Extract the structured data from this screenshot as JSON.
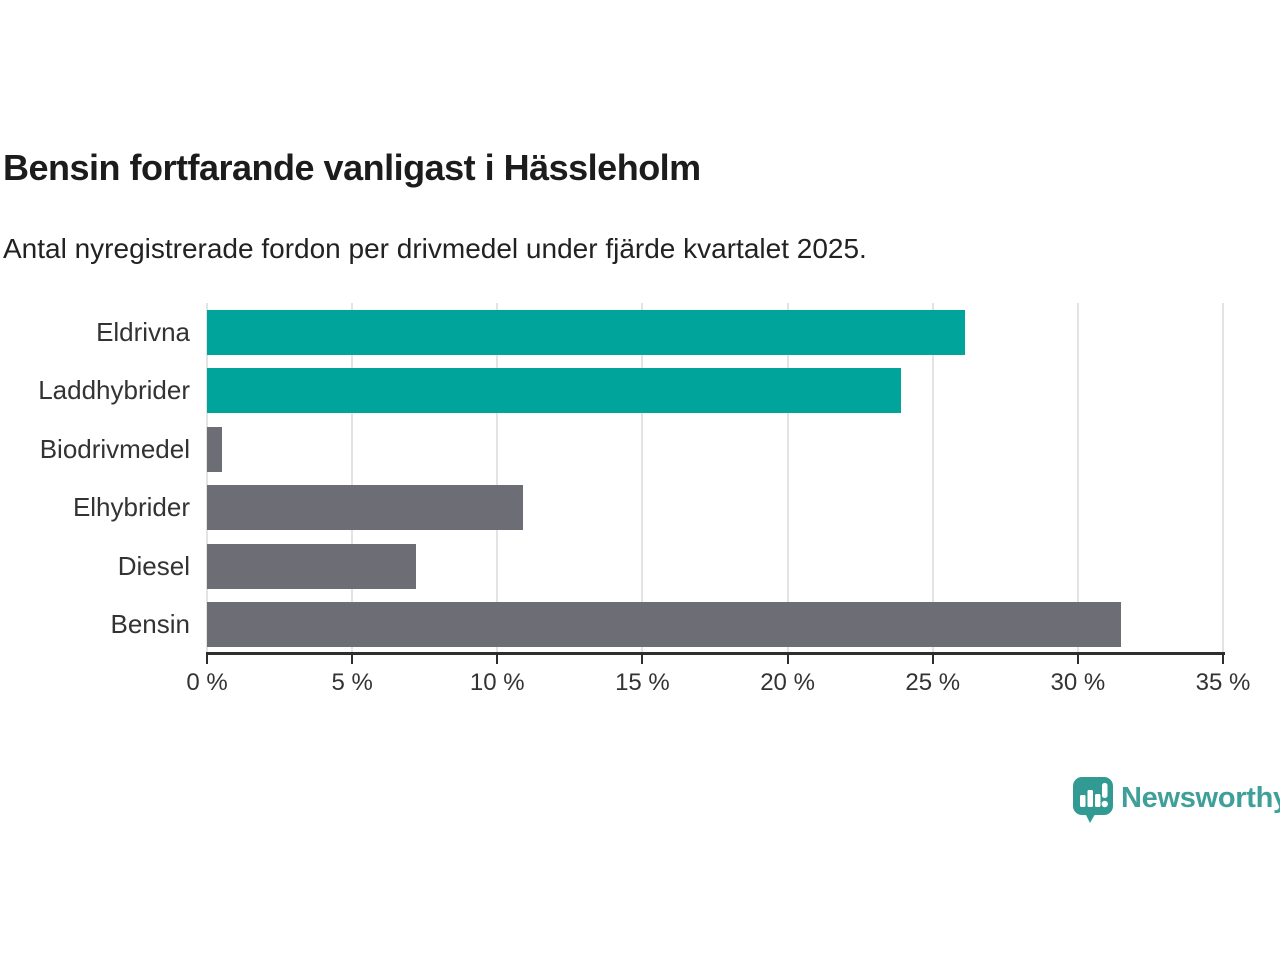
{
  "header": {
    "title": "Bensin fortfarande vanligast i Hässleholm",
    "subtitle": "Antal nyregistrerade fordon per drivmedel under fjärde kvartalet 2025."
  },
  "chart_data": {
    "type": "bar",
    "orientation": "horizontal",
    "title": "Bensin fortfarande vanligast i Hässleholm",
    "subtitle": "Antal nyregistrerade fordon per drivmedel under fjärde kvartalet 2025.",
    "categories": [
      "Eldrivna",
      "Laddhybrider",
      "Biodrivmedel",
      "Elhybrider",
      "Diesel",
      "Bensin"
    ],
    "values": [
      26.1,
      23.9,
      0.5,
      10.9,
      7.2,
      31.5
    ],
    "unit": "%",
    "bar_colors": [
      "#00a49a",
      "#00a49a",
      "#6c6d75",
      "#6c6d75",
      "#6c6d75",
      "#6c6d75"
    ],
    "xlabel": "",
    "ylabel": "",
    "xlim": [
      0,
      35
    ],
    "x_ticks": [
      0,
      5,
      10,
      15,
      20,
      25,
      30,
      35
    ],
    "x_tick_labels": [
      "0 %",
      "5 %",
      "10 %",
      "15 %",
      "20 %",
      "25 %",
      "30 %",
      "35 %"
    ],
    "grid": "vertical-gridlines-on",
    "legend": "none",
    "highlight_color": "#00a49a",
    "default_color": "#6c6d75"
  },
  "branding": {
    "logo_text": "Newsworthy",
    "logo_icon": "newsworthy-speech-bubble-bar-chart-icon",
    "icon_color": "#319b93",
    "text_color": "#3fa099"
  },
  "style_colors": {
    "background": "#ffffff",
    "title_text": "#1c1c1c",
    "subtitle_text": "#222222",
    "label_text": "#333333",
    "axis": "#2e2e2e",
    "gridline": "#e3e3e3"
  }
}
